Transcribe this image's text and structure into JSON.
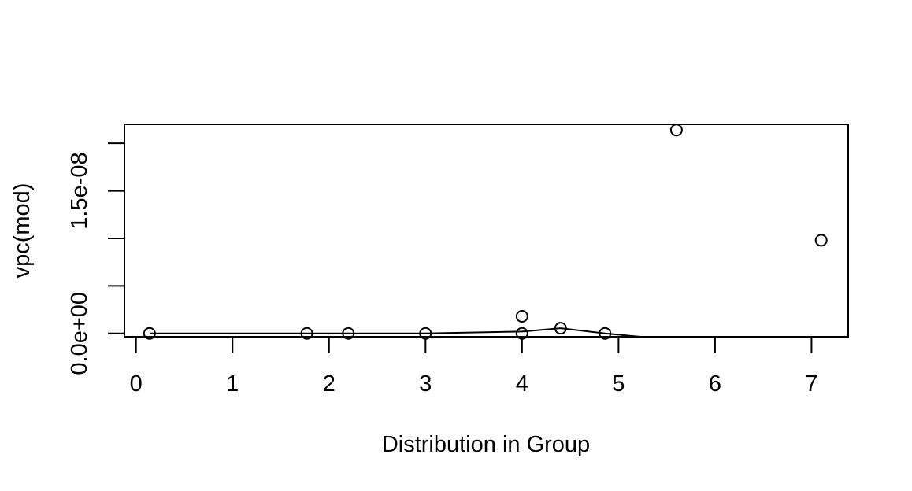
{
  "chart_data": {
    "type": "scatter",
    "title": "",
    "xlabel": "Distribution in Group",
    "ylabel": "vpc(mod)",
    "xlim": [
      -0.12,
      7.38
    ],
    "ylim": [
      -3.5e-10,
      2.2e-08
    ],
    "x_ticks": [
      0,
      1,
      2,
      3,
      4,
      5,
      6,
      7
    ],
    "x_tick_labels": [
      "0",
      "1",
      "2",
      "3",
      "4",
      "5",
      "6",
      "7"
    ],
    "y_ticks": [
      0,
      5e-09,
      1e-08,
      1.5e-08,
      2e-08
    ],
    "y_tick_labels": [
      "0.0e+00",
      "",
      "",
      "1.5e-08",
      ""
    ],
    "grid": false,
    "legend": "none",
    "points": {
      "x": [
        0.14,
        1.77,
        2.2,
        3.0,
        4.0,
        4.0,
        4.4,
        4.86,
        5.6,
        7.1
      ],
      "y": [
        0,
        0,
        0,
        0,
        0,
        1.8e-09,
        5.5e-10,
        0,
        2.14e-08,
        9.8e-09
      ]
    },
    "line": {
      "x": [
        0.14,
        1.77,
        2.2,
        3.0,
        4.0,
        4.4,
        4.86,
        5.8,
        7.38
      ],
      "y": [
        0,
        0,
        0,
        0,
        2e-10,
        5.5e-10,
        0,
        -9e-10,
        -9e-10
      ]
    }
  }
}
